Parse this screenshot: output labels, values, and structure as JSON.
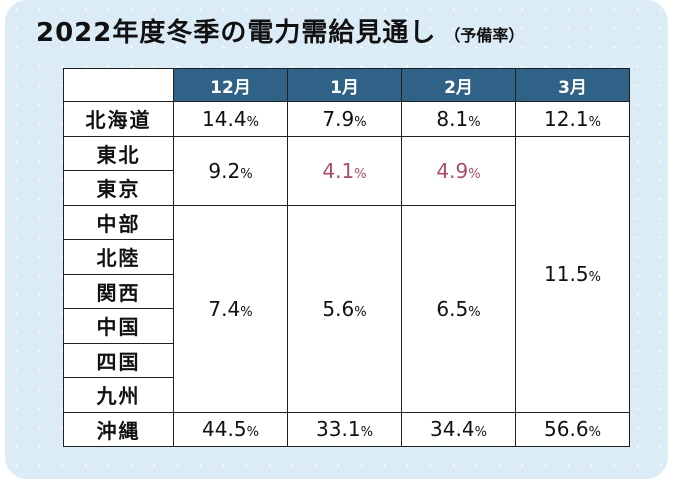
{
  "title": "2022年度冬季の電力需給見通し",
  "subtitle": "（予備率）",
  "months": [
    "12月",
    "1月",
    "2月",
    "3月"
  ],
  "rows": {
    "hokkaido": {
      "region": "北海道",
      "values": [
        "14.4",
        "7.9",
        "8.1",
        "12.1"
      ]
    },
    "tohoku": {
      "region": "東北"
    },
    "tokyo": {
      "region": "東京"
    },
    "chubu": {
      "region": "中部"
    },
    "hokuriku": {
      "region": "北陸"
    },
    "kansai": {
      "region": "関西"
    },
    "chugoku": {
      "region": "中国"
    },
    "shikoku": {
      "region": "四国"
    },
    "kyushu": {
      "region": "九州"
    },
    "okinawa": {
      "region": "沖縄",
      "values": [
        "44.5",
        "33.1",
        "34.4",
        "56.6"
      ]
    }
  },
  "groups": {
    "east": {
      "values": [
        "9.2",
        "4.1",
        "4.9"
      ]
    },
    "west": {
      "values": [
        "7.4",
        "5.6",
        "6.5"
      ]
    },
    "march_mainland": "11.5"
  },
  "unit": "%",
  "colors": {
    "header_bg": "#2f6286",
    "highlight_red": "#a84f64",
    "background": "#dcecf6"
  }
}
